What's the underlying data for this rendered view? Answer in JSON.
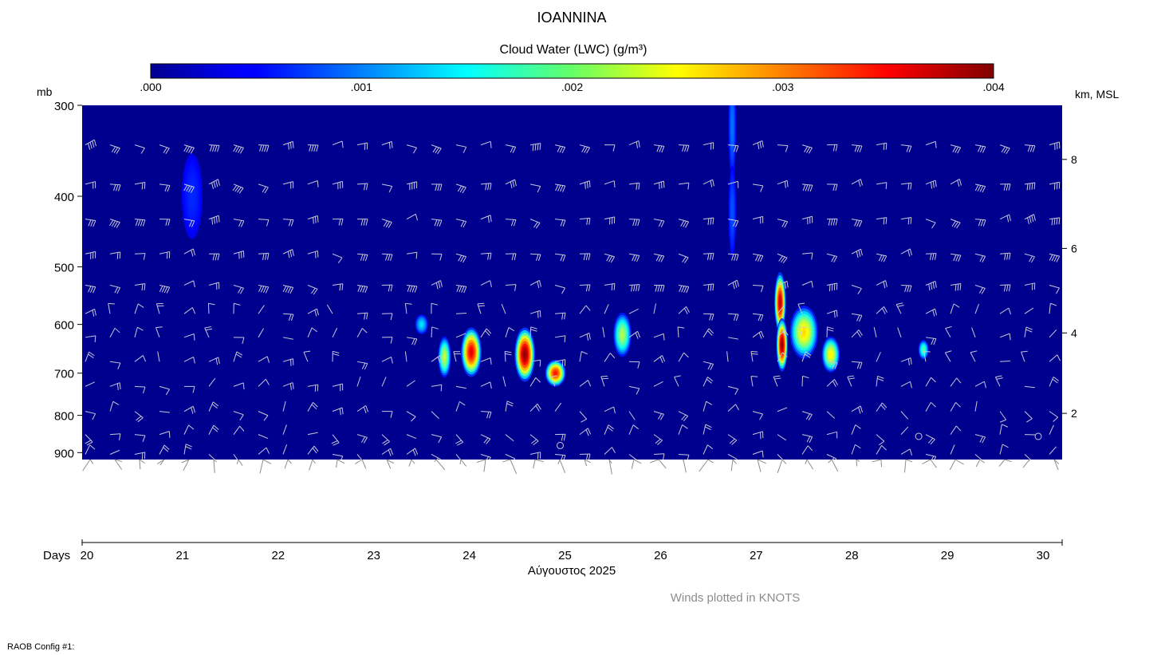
{
  "chart_data": {
    "type": "heatmap",
    "title": "IOANNINA",
    "colorbar": {
      "label": "Cloud Water (LWC) (g/m³)",
      "min": 0,
      "max": 0.004,
      "tick_labels": [
        ".000",
        ".001",
        ".002",
        ".003",
        ".004"
      ],
      "tick_values": [
        0,
        0.001,
        0.002,
        0.003,
        0.004
      ],
      "colormap": "jet"
    },
    "y_left": {
      "label": "mb",
      "tick_labels": [
        "300",
        "400",
        "500",
        "600",
        "700",
        "800",
        "900"
      ],
      "tick_values": [
        300,
        400,
        500,
        600,
        700,
        800,
        900
      ],
      "range": [
        300,
        920
      ]
    },
    "y_right": {
      "label": "km, MSL",
      "tick_labels": [
        "2",
        "4",
        "6",
        "8"
      ],
      "tick_values": [
        2,
        4,
        6,
        8
      ]
    },
    "x": {
      "label_prefix": "Days",
      "label": "Αύγουστος 2025",
      "tick_labels": [
        "20",
        "21",
        "22",
        "23",
        "24",
        "25",
        "26",
        "27",
        "28",
        "29",
        "30"
      ],
      "tick_values": [
        20,
        21,
        22,
        23,
        24,
        25,
        26,
        27,
        28,
        29,
        30
      ],
      "range": [
        19.95,
        30.2
      ]
    },
    "background_color": "#00008f",
    "cells": [
      {
        "day": 21.1,
        "mb": 400,
        "lwc": 0.00025,
        "sx": 0.08,
        "smb": 40
      },
      {
        "day": 26.75,
        "mb": 320,
        "lwc": 0.0006,
        "sx": 0.03,
        "smb": 40
      },
      {
        "day": 26.75,
        "mb": 420,
        "lwc": 0.00045,
        "sx": 0.03,
        "smb": 45
      },
      {
        "day": 23.5,
        "mb": 600,
        "lwc": 0.0011,
        "sx": 0.05,
        "smb": 14
      },
      {
        "day": 23.74,
        "mb": 665,
        "lwc": 0.0021,
        "sx": 0.05,
        "smb": 32
      },
      {
        "day": 24.02,
        "mb": 655,
        "lwc": 0.0036,
        "sx": 0.08,
        "smb": 38
      },
      {
        "day": 24.58,
        "mb": 660,
        "lwc": 0.004,
        "sx": 0.08,
        "smb": 42
      },
      {
        "day": 24.9,
        "mb": 700,
        "lwc": 0.0034,
        "sx": 0.08,
        "smb": 22
      },
      {
        "day": 25.6,
        "mb": 620,
        "lwc": 0.002,
        "sx": 0.07,
        "smb": 32
      },
      {
        "day": 27.25,
        "mb": 560,
        "lwc": 0.0038,
        "sx": 0.045,
        "smb": 40
      },
      {
        "day": 27.27,
        "mb": 640,
        "lwc": 0.004,
        "sx": 0.045,
        "smb": 40
      },
      {
        "day": 27.5,
        "mb": 615,
        "lwc": 0.0025,
        "sx": 0.11,
        "smb": 38
      },
      {
        "day": 27.78,
        "mb": 660,
        "lwc": 0.0024,
        "sx": 0.07,
        "smb": 28
      },
      {
        "day": 28.75,
        "mb": 650,
        "lwc": 0.0016,
        "sx": 0.04,
        "smb": 15
      }
    ]
  },
  "notes": {
    "winds": "Winds plotted in KNOTS",
    "config": "RAOB Config #1:"
  }
}
